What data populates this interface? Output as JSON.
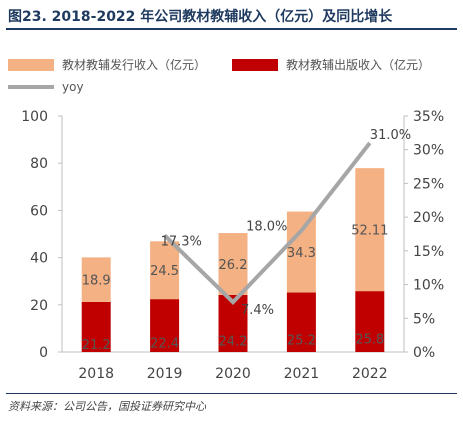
{
  "figure": {
    "title": "图23. 2018-2022 年公司教材教辅收入（亿元）及同比增长",
    "source": "资料来源：公司公告，国投证券研究中心"
  },
  "colors": {
    "issue": "#f4b183",
    "publish": "#c00000",
    "yoy": "#a6a6a6",
    "axis": "#bfbfbf"
  },
  "chart_data": {
    "type": "bar",
    "stacked": true,
    "categories": [
      "2018",
      "2019",
      "2020",
      "2021",
      "2022"
    ],
    "series": [
      {
        "name": "教材教辅出版收入（亿元）",
        "values": [
          21.2,
          22.4,
          24.2,
          25.2,
          25.8
        ],
        "labels": [
          "21.2",
          "22.4",
          "24.2",
          "25.2",
          "25.8"
        ]
      },
      {
        "name": "教材教辅发行收入（亿元）",
        "values": [
          18.9,
          24.5,
          26.2,
          34.3,
          52.11
        ],
        "labels": [
          "18.9",
          "24.5",
          "26.2",
          "34.3",
          "52.11"
        ]
      }
    ],
    "line_series": {
      "name": "yoy",
      "axis": "right",
      "categories": [
        "2019",
        "2020",
        "2021",
        "2022"
      ],
      "values": [
        17.3,
        7.4,
        18.0,
        31.0
      ],
      "labels": [
        "17.3%",
        "7.4%",
        "18.0%",
        "31.0%"
      ]
    },
    "ylim": [
      0,
      100
    ],
    "y_ticks": [
      "0",
      "20",
      "40",
      "60",
      "80",
      "100"
    ],
    "y2lim": [
      0,
      35
    ],
    "y2_ticks": [
      "0%",
      "5%",
      "10%",
      "15%",
      "20%",
      "25%",
      "30%",
      "35%"
    ],
    "grid": false,
    "legend_position": "top"
  }
}
